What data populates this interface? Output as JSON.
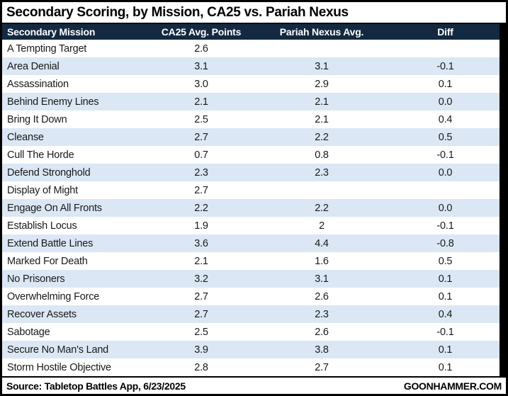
{
  "title": "Secondary Scoring, by Mission, CA25 vs. Pariah Nexus",
  "chart_data": {
    "type": "table",
    "title": "Secondary Scoring, by Mission, CA25 vs. Pariah Nexus",
    "columns": [
      "Secondary Mission",
      "CA25 Avg. Points",
      "Pariah Nexus Avg.",
      "Diff"
    ],
    "rows": [
      [
        "A Tempting Target",
        "2.6",
        "",
        ""
      ],
      [
        "Area Denial",
        "3.1",
        "3.1",
        "-0.1"
      ],
      [
        "Assassination",
        "3.0",
        "2.9",
        "0.1"
      ],
      [
        "Behind Enemy Lines",
        "2.1",
        "2.1",
        "0.0"
      ],
      [
        "Bring It Down",
        "2.5",
        "2.1",
        "0.4"
      ],
      [
        "Cleanse",
        "2.7",
        "2.2",
        "0.5"
      ],
      [
        "Cull The Horde",
        "0.7",
        "0.8",
        "-0.1"
      ],
      [
        "Defend Stronghold",
        "2.3",
        "2.3",
        "0.0"
      ],
      [
        "Display of Might",
        "2.7",
        "",
        ""
      ],
      [
        "Engage On All Fronts",
        "2.2",
        "2.2",
        "0.0"
      ],
      [
        "Establish Locus",
        "1.9",
        "2",
        "-0.1"
      ],
      [
        "Extend Battle Lines",
        "3.6",
        "4.4",
        "-0.8"
      ],
      [
        "Marked For Death",
        "2.1",
        "1.6",
        "0.5"
      ],
      [
        "No Prisoners",
        "3.2",
        "3.1",
        "0.1"
      ],
      [
        "Overwhelming Force",
        "2.7",
        "2.6",
        "0.1"
      ],
      [
        "Recover Assets",
        "2.7",
        "2.3",
        "0.4"
      ],
      [
        "Sabotage",
        "2.5",
        "2.6",
        "-0.1"
      ],
      [
        "Secure No Man's Land",
        "3.9",
        "3.8",
        "0.1"
      ],
      [
        "Storm Hostile Objective",
        "2.8",
        "2.7",
        "0.1"
      ]
    ]
  },
  "footer": {
    "source": "Source: Tabletop Battles App, 6/23/2025",
    "site": "GOONHAMMER.COM"
  },
  "colors": {
    "header_bg": "#132941",
    "row_alt_bg": "#dbe7f4",
    "frame": "#000000",
    "title_text": "#000000",
    "header_text": "#ffffff"
  }
}
